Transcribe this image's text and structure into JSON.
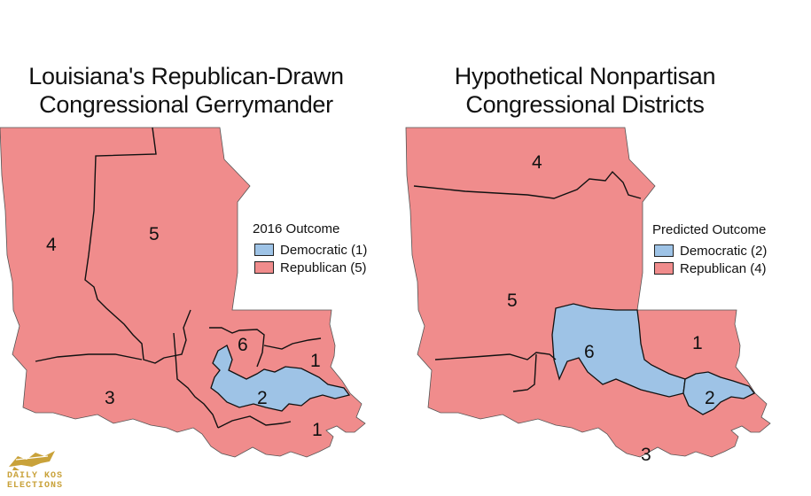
{
  "left_panel": {
    "title_line1": "Louisiana's Republican-Drawn",
    "title_line2": "Congressional Gerrymander",
    "legend": {
      "title": "2016 Outcome",
      "items": [
        {
          "label": "Democratic (1)",
          "color": "#9ec3e6"
        },
        {
          "label": "Republican (5)",
          "color": "#f08c8c"
        }
      ]
    },
    "districts": [
      {
        "number": "4",
        "party": "Republican"
      },
      {
        "number": "5",
        "party": "Republican"
      },
      {
        "number": "6",
        "party": "Republican"
      },
      {
        "number": "1",
        "party": "Republican"
      },
      {
        "number": "2",
        "party": "Democratic"
      },
      {
        "number": "3",
        "party": "Republican"
      },
      {
        "number": "1",
        "party": "Republican"
      }
    ]
  },
  "right_panel": {
    "title_line1": "Hypothetical Nonpartisan",
    "title_line2": "Congressional Districts",
    "legend": {
      "title": "Predicted Outcome",
      "items": [
        {
          "label": "Democratic (2)",
          "color": "#9ec3e6"
        },
        {
          "label": "Republican (4)",
          "color": "#f08c8c"
        }
      ]
    },
    "districts": [
      {
        "number": "4",
        "party": "Republican"
      },
      {
        "number": "5",
        "party": "Republican"
      },
      {
        "number": "6",
        "party": "Democratic"
      },
      {
        "number": "1",
        "party": "Republican"
      },
      {
        "number": "2",
        "party": "Democratic"
      },
      {
        "number": "3",
        "party": "Republican"
      }
    ]
  },
  "colors": {
    "republican": "#f08c8c",
    "democratic": "#9ec3e6",
    "border": "#111111"
  },
  "branding": {
    "line1": "DAILY KOS",
    "line2": "ELECTIONS",
    "logo_icon": "eagle-flag-logo-icon",
    "color": "#c9a23a"
  }
}
